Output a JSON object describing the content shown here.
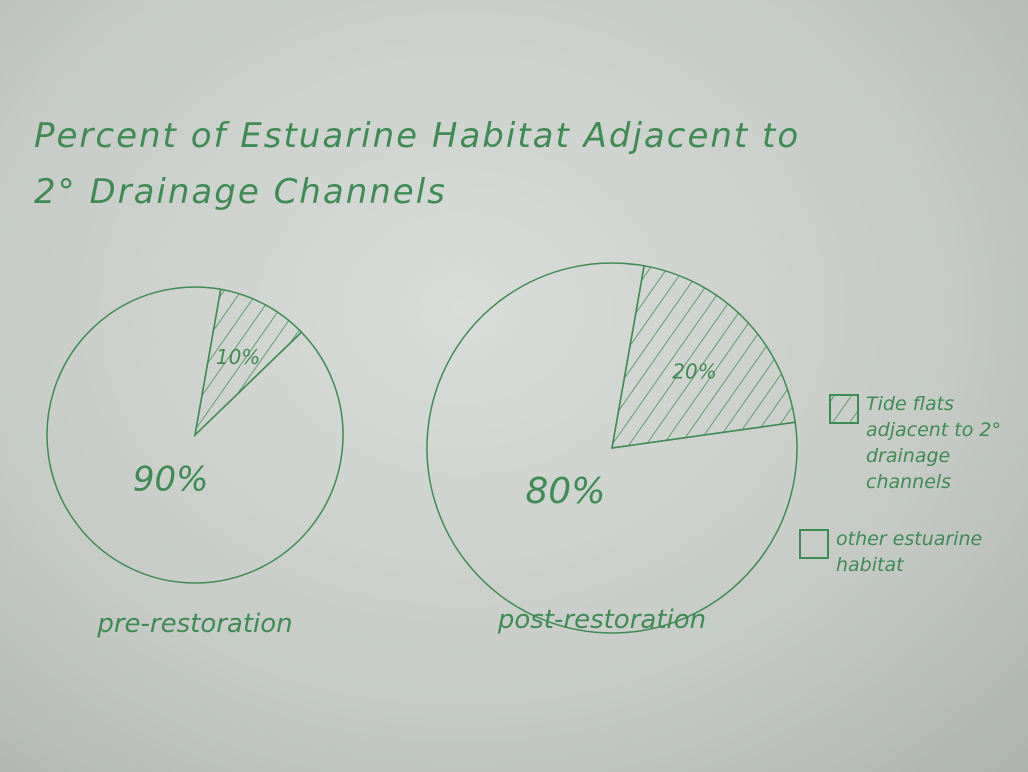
{
  "chart_data": {
    "type": "pie",
    "title": "Percent of Estuarine Habitat Adjacent to 2° Drainage Channels",
    "categories": [
      "Tide flats adjacent to 2° drainage channels",
      "other estuarine habitat"
    ],
    "color": "#3f8a55",
    "series": [
      {
        "name": "pre-restoration",
        "values": [
          10,
          90
        ],
        "value_labels": [
          "10%",
          "90%"
        ]
      },
      {
        "name": "post-restoration",
        "values": [
          20,
          80
        ],
        "value_labels": [
          "20%",
          "80%"
        ]
      }
    ]
  }
}
